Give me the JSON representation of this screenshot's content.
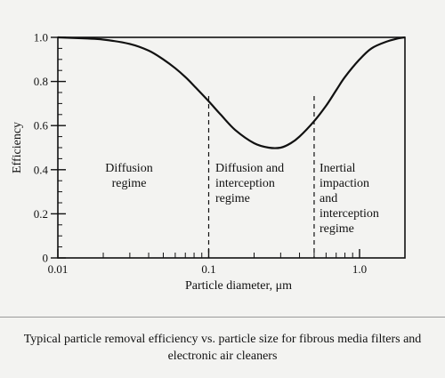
{
  "chart_data": {
    "type": "line",
    "title": "",
    "xlabel": "Particle diameter, μm",
    "ylabel": "Efficiency",
    "xscale": "log",
    "xlim": [
      0.01,
      2.0
    ],
    "ylim": [
      0,
      1.0
    ],
    "x_ticks": [
      {
        "value": 0.01,
        "label": "0.01"
      },
      {
        "value": 0.1,
        "label": "0.1"
      },
      {
        "value": 1.0,
        "label": "1.0"
      }
    ],
    "y_ticks": [
      {
        "value": 0,
        "label": "0"
      },
      {
        "value": 0.2,
        "label": "0.2"
      },
      {
        "value": 0.4,
        "label": "0.4"
      },
      {
        "value": 0.6,
        "label": "0.6"
      },
      {
        "value": 0.8,
        "label": "0.8"
      },
      {
        "value": 1.0,
        "label": "1.0"
      }
    ],
    "grid": false,
    "series": [
      {
        "x": [
          0.01,
          0.015,
          0.02,
          0.03,
          0.04,
          0.05,
          0.06,
          0.07,
          0.08,
          0.1,
          0.12,
          0.15,
          0.2,
          0.25,
          0.3,
          0.35,
          0.4,
          0.5,
          0.6,
          0.7,
          0.8,
          1.0,
          1.2,
          1.5,
          1.8,
          2.0
        ],
        "y": [
          1.0,
          0.995,
          0.99,
          0.97,
          0.94,
          0.9,
          0.86,
          0.82,
          0.78,
          0.71,
          0.65,
          0.58,
          0.52,
          0.5,
          0.5,
          0.52,
          0.55,
          0.62,
          0.69,
          0.76,
          0.82,
          0.9,
          0.95,
          0.98,
          0.995,
          1.0
        ]
      }
    ],
    "regime_boundaries": [
      0.1,
      0.5
    ],
    "regions": [
      {
        "lines": [
          "Diffusion",
          "regime"
        ]
      },
      {
        "lines": [
          "Diffusion and",
          "interception",
          "regime"
        ]
      },
      {
        "lines": [
          "Inertial",
          "impaction",
          "and",
          "interception",
          "regime"
        ]
      }
    ]
  },
  "caption": "Typical particle removal efficiency vs. particle size for fibrous media filters and electronic air cleaners"
}
